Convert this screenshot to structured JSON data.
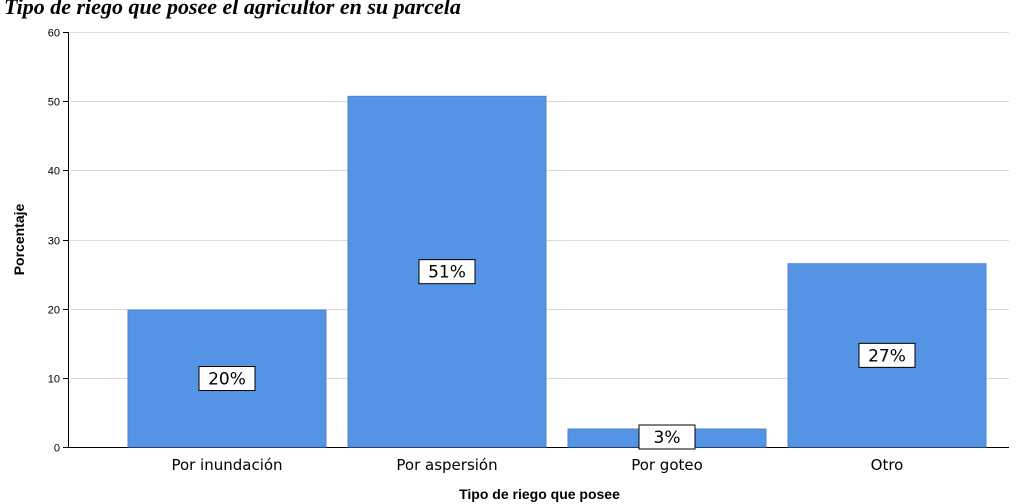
{
  "caption": "Tipo de riego que posee el agricultor en su parcela",
  "chart_data": {
    "type": "bar",
    "title": "",
    "xlabel": "Tipo de riego que posee",
    "ylabel": "Porcentaje",
    "categories": [
      "Por inundación",
      "Por aspersión",
      "Por goteo",
      "Otro"
    ],
    "values": [
      19.8,
      50.7,
      2.6,
      26.5
    ],
    "data_labels": [
      "20%",
      "51%",
      "3%",
      "27%"
    ],
    "yticks": [
      0,
      10,
      20,
      30,
      40,
      50,
      60
    ],
    "ylim": [
      0,
      60
    ],
    "grid": true,
    "legend": "none",
    "bar_color": "#5594e4",
    "bar_edge_color": "#4d86cf",
    "grid_color": "#d9d9d9"
  }
}
